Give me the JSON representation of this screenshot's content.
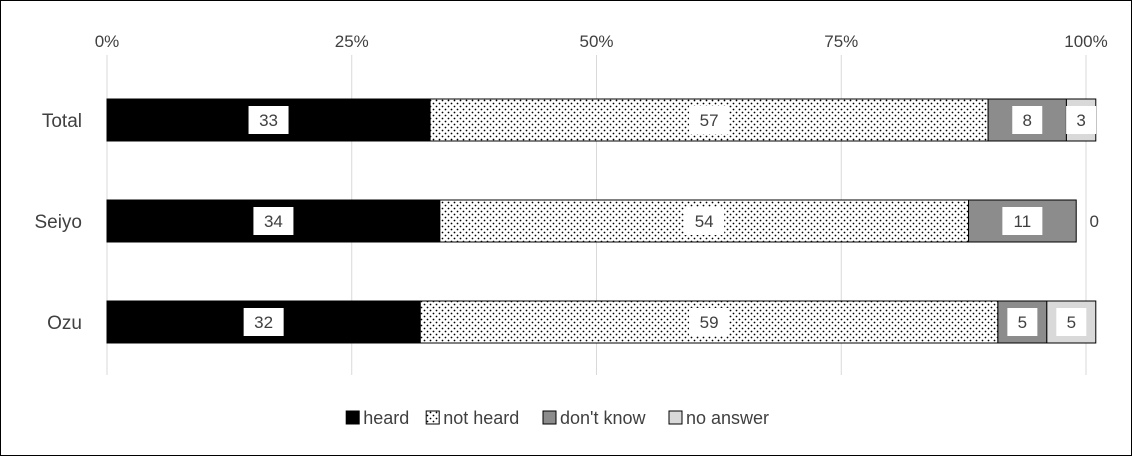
{
  "chart_data": {
    "type": "bar",
    "orientation": "horizontal",
    "stacked": "100%",
    "categories": [
      "Total",
      "Seiyo",
      "Ozu"
    ],
    "series": [
      {
        "name": "heard",
        "values": [
          33,
          34,
          32
        ],
        "color": "#000000",
        "pattern": "solid"
      },
      {
        "name": "not heard",
        "values": [
          57,
          54,
          59
        ],
        "color": "#ffffff",
        "pattern": "dots"
      },
      {
        "name": "don't know",
        "values": [
          8,
          11,
          5
        ],
        "color": "#8c8c8c",
        "pattern": "solid"
      },
      {
        "name": "no answer",
        "values": [
          3,
          0,
          5
        ],
        "color": "#d9d9d9",
        "pattern": "solid"
      }
    ],
    "xaxis": {
      "position": "top",
      "ticks": [
        "0%",
        "25%",
        "50%",
        "75%",
        "100%"
      ],
      "range": [
        0,
        100
      ]
    },
    "grid": true,
    "legend": {
      "position": "bottom"
    },
    "title": "",
    "xlabel": "",
    "ylabel": ""
  }
}
